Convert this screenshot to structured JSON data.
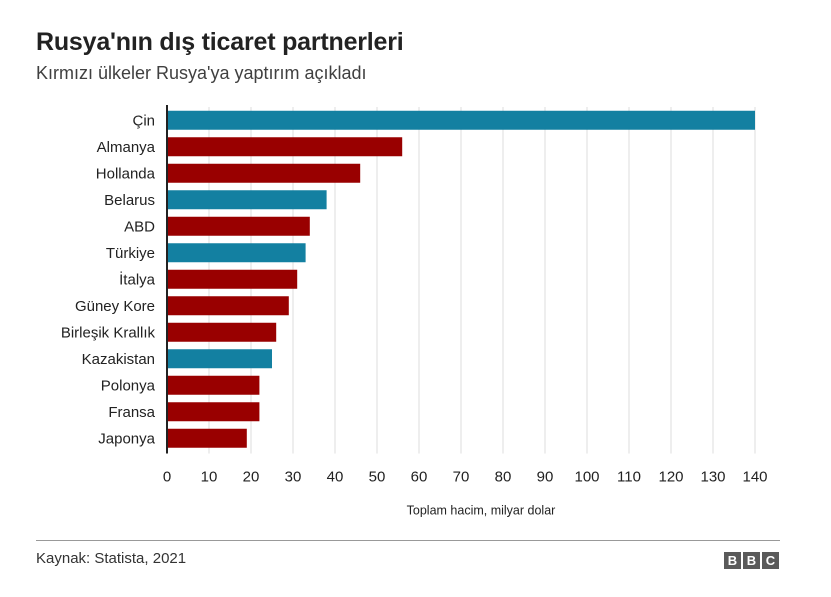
{
  "chart_data": {
    "type": "bar",
    "orientation": "horizontal",
    "title": "Rusya'nın dış ticaret partnerleri",
    "subtitle": "Kırmızı ülkeler Rusya'ya yaptırım açıkladı",
    "xlabel": "Toplam hacim, milyar dolar",
    "ylabel": "",
    "xlim": [
      0,
      140
    ],
    "xticks": [
      "0",
      "10",
      "20",
      "30",
      "40",
      "50",
      "60",
      "70",
      "80",
      "90",
      "100",
      "110",
      "120",
      "130",
      "140"
    ],
    "grid": true,
    "categories": [
      "Çin",
      "Almanya",
      "Hollanda",
      "Belarus",
      "ABD",
      "Türkiye",
      "İtalya",
      "Güney Kore",
      "Birleşik Krallık",
      "Kazakistan",
      "Polonya",
      "Fransa",
      "Japonya"
    ],
    "values": [
      140,
      56,
      46,
      38,
      34,
      33,
      31,
      29,
      26,
      25,
      22,
      22,
      19
    ],
    "sanctioned": [
      false,
      true,
      true,
      false,
      true,
      false,
      true,
      true,
      true,
      false,
      true,
      true,
      true
    ],
    "colors": {
      "sanctioned": "#990000",
      "not_sanctioned": "#1380a1",
      "grid": "#dddddd",
      "axis": "#222222"
    }
  },
  "footer": {
    "source": "Kaynak: Statista, 2021",
    "logo_letters": [
      "B",
      "B",
      "C"
    ]
  }
}
